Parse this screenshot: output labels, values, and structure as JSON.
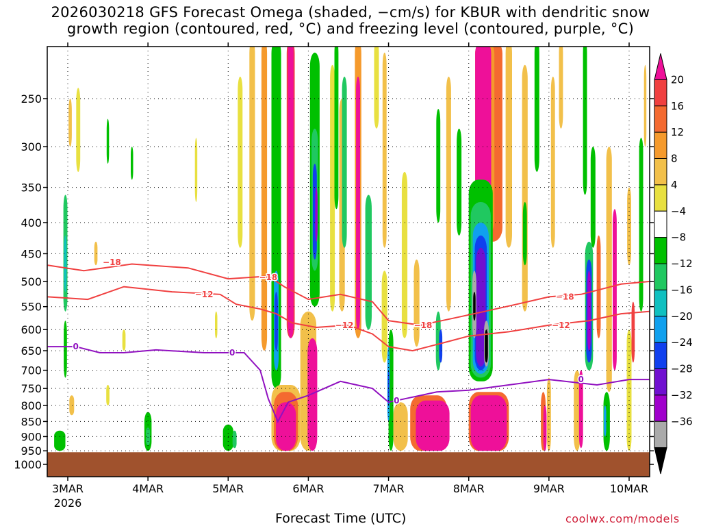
{
  "title": {
    "line1": "2026030218 GFS Forecast Omega (shaded, −cm/s) for KBUR with dendritic snow",
    "line2": "growth region (contoured, red, °C) and freezing level (contoured, purple, °C)"
  },
  "credit": "coolwx.com/models",
  "chart_data": {
    "type": "heatmap",
    "title": "2026030218 GFS Forecast Omega (shaded, −cm/s) for KBUR with dendritic snow growth region (contoured, red, °C) and freezing level (contoured, purple, °C)",
    "xlabel": "Forecast Time (UTC)",
    "ylabel": "",
    "x_ticks": [
      {
        "label": "3MAR",
        "day": 3
      },
      {
        "label": "4MAR",
        "day": 4
      },
      {
        "label": "5MAR",
        "day": 5
      },
      {
        "label": "6MAR",
        "day": 6
      },
      {
        "label": "7MAR",
        "day": 7
      },
      {
        "label": "8MAR",
        "day": 8
      },
      {
        "label": "9MAR",
        "day": 9
      },
      {
        "label": "10MAR",
        "day": 10
      }
    ],
    "x_year_label": "2026",
    "xlim_days": [
      2.75,
      10.25
    ],
    "y_ticks": [
      250,
      300,
      350,
      400,
      450,
      500,
      550,
      600,
      650,
      700,
      750,
      800,
      850,
      900,
      950,
      1000
    ],
    "ylim_hPa": [
      200,
      1050
    ],
    "y_scale": "log-pressure",
    "grid": true,
    "surface_pressure_hPa": 955,
    "colorbar": {
      "labels": [
        "20",
        "16",
        "12",
        "8",
        "4",
        "−4",
        "−8",
        "−12",
        "−16",
        "−20",
        "−24",
        "−28",
        "−32",
        "−36"
      ],
      "colors": [
        "#ee1099",
        "#f04040",
        "#f46a30",
        "#f59a2c",
        "#f2c04a",
        "#e8e040",
        "#ffffff",
        "#00c000",
        "#20c860",
        "#10c0c0",
        "#10a0ee",
        "#1040ee",
        "#7010d0",
        "#a000cc",
        "#aaaaaa",
        "#000000"
      ]
    },
    "dgz_minus12_series": {
      "name": "−12",
      "points": [
        [
          2.75,
          530
        ],
        [
          3.25,
          535
        ],
        [
          3.7,
          510
        ],
        [
          4.3,
          520
        ],
        [
          4.9,
          525
        ],
        [
          5.1,
          545
        ],
        [
          5.4,
          555
        ],
        [
          5.6,
          565
        ],
        [
          5.8,
          585
        ],
        [
          6.1,
          595
        ],
        [
          6.5,
          590
        ],
        [
          6.8,
          610
        ],
        [
          7.0,
          640
        ],
        [
          7.3,
          650
        ],
        [
          7.7,
          630
        ],
        [
          8.0,
          615
        ],
        [
          8.5,
          605
        ],
        [
          9.0,
          590
        ],
        [
          9.5,
          580
        ],
        [
          9.9,
          565
        ],
        [
          10.25,
          560
        ]
      ]
    },
    "dgz_minus18_series": {
      "name": "−18",
      "points": [
        [
          2.75,
          470
        ],
        [
          3.2,
          480
        ],
        [
          3.45,
          475
        ],
        [
          3.8,
          468
        ],
        [
          4.5,
          475
        ],
        [
          5.0,
          495
        ],
        [
          5.5,
          490
        ],
        [
          5.7,
          510
        ],
        [
          6.0,
          535
        ],
        [
          6.4,
          525
        ],
        [
          6.8,
          540
        ],
        [
          7.0,
          580
        ],
        [
          7.4,
          590
        ],
        [
          7.8,
          575
        ],
        [
          8.2,
          560
        ],
        [
          8.6,
          545
        ],
        [
          9.0,
          530
        ],
        [
          9.4,
          525
        ],
        [
          9.9,
          505
        ],
        [
          10.25,
          500
        ]
      ]
    },
    "freezing_level_series": {
      "name": "0",
      "points": [
        [
          2.75,
          640
        ],
        [
          3.1,
          640
        ],
        [
          3.4,
          655
        ],
        [
          3.7,
          655
        ],
        [
          4.1,
          648
        ],
        [
          4.7,
          655
        ],
        [
          5.2,
          655
        ],
        [
          5.4,
          700
        ],
        [
          5.5,
          780
        ],
        [
          5.62,
          850
        ],
        [
          5.75,
          790
        ],
        [
          6.0,
          770
        ],
        [
          6.4,
          730
        ],
        [
          6.8,
          750
        ],
        [
          7.0,
          790
        ],
        [
          7.2,
          780
        ],
        [
          7.6,
          760
        ],
        [
          8.0,
          755
        ],
        [
          8.5,
          740
        ],
        [
          9.0,
          725
        ],
        [
          9.6,
          740
        ],
        [
          10.0,
          725
        ],
        [
          10.25,
          725
        ]
      ]
    },
    "contour_labels": [
      {
        "text": "−18",
        "day": 3.55,
        "hPa": 465,
        "color": "#f04040"
      },
      {
        "text": "−18",
        "day": 5.5,
        "hPa": 492,
        "color": "#f04040"
      },
      {
        "text": "−12",
        "day": 4.7,
        "hPa": 525,
        "color": "#f04040"
      },
      {
        "text": "−12",
        "day": 6.45,
        "hPa": 590,
        "color": "#f04040"
      },
      {
        "text": "−18",
        "day": 7.43,
        "hPa": 590,
        "color": "#f04040"
      },
      {
        "text": "−18",
        "day": 9.2,
        "hPa": 530,
        "color": "#f04040"
      },
      {
        "text": "−12",
        "day": 9.15,
        "hPa": 590,
        "color": "#f04040"
      },
      {
        "text": "0",
        "day": 3.1,
        "hPa": 640,
        "color": "#9010c0"
      },
      {
        "text": "0",
        "day": 5.05,
        "hPa": 655,
        "color": "#9010c0"
      },
      {
        "text": "0",
        "day": 7.1,
        "hPa": 785,
        "color": "#9010c0"
      },
      {
        "text": "0",
        "day": 9.4,
        "hPa": 725,
        "color": "#9010c0"
      }
    ]
  }
}
